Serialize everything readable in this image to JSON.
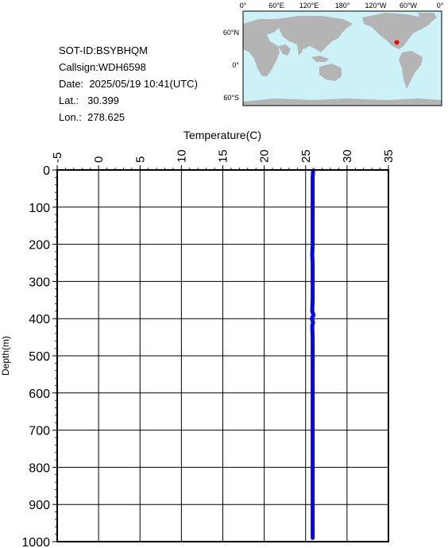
{
  "info": {
    "sot_id": "SOT-ID:BSYBHQM",
    "callsign": "Callsign:WDH6598",
    "date_label": "Date:",
    "date_value": "2025/05/19 10:41(UTC)",
    "lat_label": "Lat.:",
    "lat_value": "30.399",
    "lon_label": "Lon.:",
    "lon_value": "278.625"
  },
  "map": {
    "lon_labels": [
      "0°",
      "60°E",
      "120°E",
      "180°",
      "120°W",
      "60°W",
      "0°"
    ],
    "lat_labels": [
      "60°N",
      "0°",
      "60°S"
    ],
    "ocean_color": "#ccf2f7",
    "land_color": "#b4b4b4",
    "marker_color": "#ff0000",
    "marker": {
      "lon": 278.625,
      "lat": 30.399
    }
  },
  "chart_data": {
    "type": "line",
    "title": "",
    "xlabel": "Temperature(C)",
    "ylabel": "Depth(m)",
    "xlim": [
      -5,
      35
    ],
    "ylim": [
      0,
      1000
    ],
    "x_ticks": [
      -5,
      0,
      5,
      10,
      15,
      20,
      25,
      30,
      35
    ],
    "y_ticks": [
      0,
      100,
      200,
      300,
      400,
      500,
      600,
      700,
      800,
      900,
      1000
    ],
    "grid": true,
    "series_color": "#0000ff",
    "series": [
      {
        "depth": [
          2,
          20,
          50,
          100,
          150,
          200,
          230,
          250,
          300,
          350,
          380,
          390,
          400,
          410,
          420,
          450,
          500,
          600,
          700,
          800,
          900,
          990
        ],
        "temperature": [
          25.9,
          25.85,
          25.85,
          25.85,
          25.85,
          25.85,
          25.8,
          25.85,
          25.85,
          25.85,
          25.8,
          25.95,
          25.75,
          25.9,
          25.8,
          25.85,
          25.85,
          25.85,
          25.85,
          25.85,
          25.85,
          25.85
        ]
      }
    ]
  }
}
